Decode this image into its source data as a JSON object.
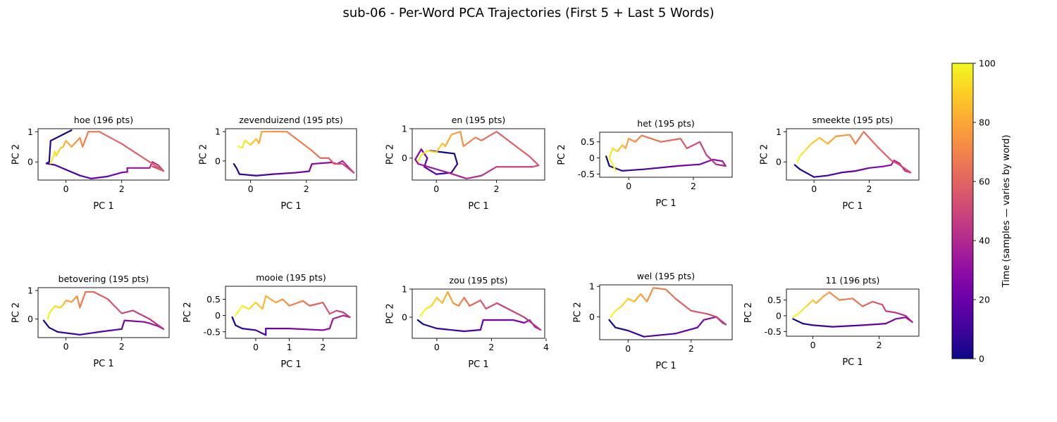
{
  "figure": {
    "title": "sub-06 - Per-Word PCA Trajectories (First 5 + Last 5 Words)"
  },
  "colorbar": {
    "label": "Time (samples — varies by word)",
    "range": [
      0,
      100
    ],
    "ticks": [
      0,
      20,
      40,
      60,
      80,
      100
    ],
    "colormap": "plasma"
  },
  "chart_data": [
    {
      "type": "line",
      "title": "hoe (196 pts)",
      "xlabel": "PC 1",
      "ylabel": "PC 2",
      "xlim": [
        -1.0,
        3.7
      ],
      "ylim": [
        -0.6,
        1.1
      ],
      "xticks": [
        0,
        2
      ],
      "yticks": [
        0,
        1
      ],
      "points": [
        [
          0.2,
          1.05
        ],
        [
          -0.55,
          0.7
        ],
        [
          -0.6,
          0.0
        ],
        [
          -0.7,
          -0.05
        ],
        [
          -0.4,
          -0.1
        ],
        [
          0.5,
          -0.45
        ],
        [
          0.9,
          -0.55
        ],
        [
          1.5,
          -0.48
        ],
        [
          2.0,
          -0.35
        ],
        [
          2.2,
          -0.33
        ],
        [
          2.2,
          -0.2
        ],
        [
          2.9,
          -0.2
        ],
        [
          3.0,
          -0.2
        ],
        [
          3.1,
          0.0
        ],
        [
          3.3,
          -0.1
        ],
        [
          3.5,
          -0.3
        ],
        [
          3.3,
          -0.2
        ],
        [
          3.1,
          -0.15
        ],
        [
          3.5,
          -0.3
        ],
        [
          2.0,
          0.6
        ],
        [
          1.2,
          1.0
        ],
        [
          0.8,
          1.0
        ],
        [
          0.6,
          0.5
        ],
        [
          0.5,
          0.8
        ],
        [
          0.3,
          0.6
        ],
        [
          0.2,
          0.5
        ],
        [
          0.0,
          0.7
        ],
        [
          -0.1,
          0.5
        ],
        [
          -0.2,
          0.45
        ],
        [
          -0.35,
          0.2
        ],
        [
          -0.4,
          0.35
        ],
        [
          -0.5,
          0.05
        ],
        [
          -0.55,
          -0.05
        ]
      ]
    },
    {
      "type": "line",
      "title": "zevenduizend (195 pts)",
      "xlabel": "PC 1",
      "ylabel": "PC 2",
      "xlim": [
        -0.9,
        3.8
      ],
      "ylim": [
        -0.65,
        1.1
      ],
      "xticks": [
        0,
        2
      ],
      "yticks": [
        0,
        1
      ],
      "points": [
        [
          -0.6,
          -0.1
        ],
        [
          -0.5,
          -0.25
        ],
        [
          -0.4,
          -0.45
        ],
        [
          0.2,
          -0.5
        ],
        [
          0.8,
          -0.45
        ],
        [
          1.6,
          -0.4
        ],
        [
          2.1,
          -0.35
        ],
        [
          2.2,
          -0.1
        ],
        [
          2.9,
          -0.05
        ],
        [
          3.1,
          -0.1
        ],
        [
          3.3,
          0.0
        ],
        [
          3.5,
          -0.2
        ],
        [
          3.7,
          -0.4
        ],
        [
          3.3,
          -0.1
        ],
        [
          3.0,
          -0.1
        ],
        [
          2.8,
          0.1
        ],
        [
          2.5,
          0.1
        ],
        [
          2.2,
          0.35
        ],
        [
          1.3,
          1.0
        ],
        [
          0.8,
          1.0
        ],
        [
          0.4,
          1.0
        ],
        [
          0.3,
          0.6
        ],
        [
          0.2,
          0.75
        ],
        [
          0.0,
          0.55
        ],
        [
          -0.2,
          0.7
        ],
        [
          -0.3,
          0.45
        ],
        [
          -0.45,
          0.5
        ]
      ]
    },
    {
      "type": "line",
      "title": "en (195 pts)",
      "xlabel": "PC 1",
      "ylabel": "PC 2",
      "xlim": [
        -0.8,
        3.6
      ],
      "ylim": [
        -0.75,
        1.0
      ],
      "xticks": [
        0,
        2
      ],
      "yticks": [
        0,
        1
      ],
      "points": [
        [
          -0.2,
          0.25
        ],
        [
          0.6,
          0.15
        ],
        [
          0.7,
          -0.2
        ],
        [
          0.5,
          -0.5
        ],
        [
          0.0,
          -0.55
        ],
        [
          -0.4,
          -0.3
        ],
        [
          -0.3,
          0.0
        ],
        [
          -0.5,
          0.3
        ],
        [
          -0.7,
          -0.05
        ],
        [
          -0.6,
          -0.2
        ],
        [
          0.4,
          -0.5
        ],
        [
          1.0,
          -0.7
        ],
        [
          1.5,
          -0.6
        ],
        [
          2.0,
          -0.3
        ],
        [
          3.2,
          -0.3
        ],
        [
          3.4,
          -0.25
        ],
        [
          3.1,
          0.05
        ],
        [
          2.0,
          0.9
        ],
        [
          1.5,
          0.6
        ],
        [
          1.3,
          0.7
        ],
        [
          0.9,
          0.4
        ],
        [
          0.8,
          0.9
        ],
        [
          0.5,
          0.8
        ],
        [
          0.3,
          0.4
        ],
        [
          0.2,
          0.5
        ],
        [
          0.0,
          0.2
        ],
        [
          -0.3,
          0.25
        ],
        [
          -0.5,
          0.1
        ],
        [
          -0.6,
          -0.1
        ]
      ]
    },
    {
      "type": "line",
      "title": "het (195 pts)",
      "xlabel": "PC 1",
      "ylabel": "PC 2",
      "xlim": [
        -0.9,
        3.2
      ],
      "ylim": [
        -0.6,
        0.8
      ],
      "xticks": [
        0,
        2
      ],
      "yticks": [
        -0.5,
        0.0,
        0.5
      ],
      "points": [
        [
          -0.7,
          0.05
        ],
        [
          -0.6,
          -0.25
        ],
        [
          -0.2,
          -0.4
        ],
        [
          0.5,
          -0.35
        ],
        [
          1.0,
          -0.3
        ],
        [
          1.5,
          -0.25
        ],
        [
          2.2,
          -0.2
        ],
        [
          2.6,
          -0.05
        ],
        [
          2.9,
          -0.1
        ],
        [
          3.0,
          -0.25
        ],
        [
          2.7,
          -0.2
        ],
        [
          2.4,
          0.1
        ],
        [
          2.2,
          0.5
        ],
        [
          1.8,
          0.3
        ],
        [
          1.6,
          0.6
        ],
        [
          1.0,
          0.5
        ],
        [
          0.4,
          0.7
        ],
        [
          0.2,
          0.5
        ],
        [
          0.0,
          0.6
        ],
        [
          -0.1,
          0.3
        ],
        [
          -0.2,
          0.4
        ],
        [
          -0.35,
          0.2
        ],
        [
          -0.5,
          0.3
        ],
        [
          -0.6,
          0.0
        ],
        [
          -0.4,
          -0.4
        ]
      ]
    },
    {
      "type": "line",
      "title": "smeekte (195 pts)",
      "xlabel": "PC 1",
      "ylabel": "PC 2",
      "xlim": [
        -1.0,
        3.8
      ],
      "ylim": [
        -0.6,
        1.1
      ],
      "xticks": [
        0,
        2
      ],
      "yticks": [
        0,
        1
      ],
      "points": [
        [
          -0.7,
          -0.1
        ],
        [
          -0.5,
          -0.25
        ],
        [
          0.0,
          -0.5
        ],
        [
          0.5,
          -0.45
        ],
        [
          1.0,
          -0.35
        ],
        [
          1.5,
          -0.3
        ],
        [
          2.0,
          -0.2
        ],
        [
          2.5,
          -0.15
        ],
        [
          2.8,
          -0.1
        ],
        [
          2.9,
          0.05
        ],
        [
          3.1,
          -0.05
        ],
        [
          3.3,
          -0.3
        ],
        [
          3.5,
          -0.35
        ],
        [
          3.1,
          -0.1
        ],
        [
          2.8,
          0.05
        ],
        [
          2.3,
          0.5
        ],
        [
          1.8,
          1.0
        ],
        [
          1.5,
          0.6
        ],
        [
          1.3,
          0.9
        ],
        [
          0.8,
          0.85
        ],
        [
          0.5,
          0.6
        ],
        [
          0.2,
          0.8
        ],
        [
          -0.1,
          0.6
        ],
        [
          -0.3,
          0.4
        ],
        [
          -0.5,
          0.2
        ],
        [
          -0.6,
          0.0
        ]
      ]
    },
    {
      "type": "line",
      "title": "betovering (195 pts)",
      "xlabel": "PC 1",
      "ylabel": "PC 2",
      "xlim": [
        -1.0,
        3.7
      ],
      "ylim": [
        -0.65,
        1.1
      ],
      "xticks": [
        0,
        2
      ],
      "yticks": [
        0,
        1
      ],
      "points": [
        [
          -0.8,
          -0.05
        ],
        [
          -0.6,
          -0.3
        ],
        [
          -0.3,
          -0.45
        ],
        [
          0.5,
          -0.55
        ],
        [
          1.2,
          -0.45
        ],
        [
          2.0,
          -0.35
        ],
        [
          2.1,
          -0.05
        ],
        [
          2.8,
          -0.1
        ],
        [
          3.0,
          -0.15
        ],
        [
          3.3,
          -0.25
        ],
        [
          3.5,
          -0.35
        ],
        [
          3.0,
          0.0
        ],
        [
          2.4,
          0.3
        ],
        [
          2.0,
          0.2
        ],
        [
          1.5,
          0.7
        ],
        [
          1.0,
          0.95
        ],
        [
          0.7,
          0.95
        ],
        [
          0.5,
          0.4
        ],
        [
          0.4,
          0.8
        ],
        [
          0.2,
          0.6
        ],
        [
          0.0,
          0.65
        ],
        [
          -0.1,
          0.5
        ],
        [
          -0.2,
          0.4
        ],
        [
          -0.4,
          0.45
        ],
        [
          -0.6,
          0.2
        ],
        [
          -0.65,
          0.0
        ]
      ]
    },
    {
      "type": "line",
      "title": "mooie (195 pts)",
      "xlabel": "PC 1",
      "ylabel": "PC 2",
      "xlim": [
        -0.9,
        3.0
      ],
      "ylim": [
        -0.7,
        0.9
      ],
      "xticks": [
        0,
        1,
        2
      ],
      "yticks": [
        -0.5,
        0.0,
        0.5
      ],
      "points": [
        [
          -0.7,
          -0.05
        ],
        [
          -0.6,
          -0.3
        ],
        [
          -0.4,
          -0.4
        ],
        [
          0.0,
          -0.45
        ],
        [
          0.3,
          -0.6
        ],
        [
          0.3,
          -0.4
        ],
        [
          1.0,
          -0.4
        ],
        [
          2.0,
          -0.45
        ],
        [
          2.2,
          -0.4
        ],
        [
          2.3,
          -0.1
        ],
        [
          2.6,
          0.0
        ],
        [
          2.8,
          -0.05
        ],
        [
          2.6,
          0.1
        ],
        [
          2.4,
          0.15
        ],
        [
          2.2,
          0.05
        ],
        [
          2.0,
          0.4
        ],
        [
          1.6,
          0.3
        ],
        [
          1.4,
          0.45
        ],
        [
          1.0,
          0.3
        ],
        [
          0.8,
          0.5
        ],
        [
          0.6,
          0.4
        ],
        [
          0.3,
          0.6
        ],
        [
          0.2,
          0.2
        ],
        [
          0.0,
          0.4
        ],
        [
          -0.2,
          0.2
        ],
        [
          -0.4,
          0.3
        ],
        [
          -0.6,
          0.0
        ]
      ]
    },
    {
      "type": "line",
      "title": "zou (195 pts)",
      "xlabel": "PC 1",
      "ylabel": "PC 2",
      "xlim": [
        -0.9,
        3.95
      ],
      "ylim": [
        -0.75,
        1.0
      ],
      "xticks": [
        0,
        2,
        4
      ],
      "yticks": [
        0,
        1
      ],
      "points": [
        [
          -0.7,
          -0.1
        ],
        [
          -0.5,
          -0.25
        ],
        [
          0.0,
          -0.4
        ],
        [
          1.0,
          -0.5
        ],
        [
          1.6,
          -0.45
        ],
        [
          1.7,
          -0.1
        ],
        [
          2.8,
          -0.1
        ],
        [
          3.2,
          -0.2
        ],
        [
          3.4,
          -0.1
        ],
        [
          3.6,
          -0.35
        ],
        [
          3.8,
          -0.45
        ],
        [
          3.2,
          0.0
        ],
        [
          2.2,
          0.5
        ],
        [
          1.8,
          0.3
        ],
        [
          1.6,
          0.6
        ],
        [
          1.2,
          0.4
        ],
        [
          1.0,
          0.7
        ],
        [
          0.8,
          0.4
        ],
        [
          0.6,
          0.5
        ],
        [
          0.4,
          0.9
        ],
        [
          0.2,
          0.5
        ],
        [
          0.0,
          0.7
        ],
        [
          -0.2,
          0.4
        ],
        [
          -0.4,
          0.3
        ],
        [
          -0.6,
          0.05
        ]
      ]
    },
    {
      "type": "line",
      "title": "wel (195 pts)",
      "xlabel": "PC 1",
      "ylabel": "PC 2",
      "xlim": [
        -0.9,
        3.3
      ],
      "ylim": [
        -0.75,
        1.05
      ],
      "xticks": [
        0,
        2
      ],
      "yticks": [
        0,
        1
      ],
      "points": [
        [
          -0.6,
          -0.1
        ],
        [
          -0.4,
          -0.35
        ],
        [
          0.0,
          -0.45
        ],
        [
          0.5,
          -0.65
        ],
        [
          1.5,
          -0.55
        ],
        [
          2.2,
          -0.35
        ],
        [
          2.4,
          -0.1
        ],
        [
          2.6,
          -0.05
        ],
        [
          2.8,
          0.0
        ],
        [
          3.0,
          -0.2
        ],
        [
          3.1,
          -0.25
        ],
        [
          2.8,
          0.0
        ],
        [
          2.5,
          0.1
        ],
        [
          2.0,
          0.2
        ],
        [
          1.5,
          0.6
        ],
        [
          1.2,
          0.9
        ],
        [
          0.8,
          0.95
        ],
        [
          0.6,
          0.5
        ],
        [
          0.4,
          0.75
        ],
        [
          0.2,
          0.5
        ],
        [
          0.0,
          0.6
        ],
        [
          -0.2,
          0.35
        ],
        [
          -0.4,
          0.2
        ],
        [
          -0.55,
          0.0
        ]
      ]
    },
    {
      "type": "line",
      "title": "11 (196 pts)",
      "xlabel": "PC 1",
      "ylabel": "PC 2",
      "xlim": [
        -0.8,
        3.2
      ],
      "ylim": [
        -0.65,
        0.85
      ],
      "xticks": [
        0,
        2
      ],
      "yticks": [
        -0.5,
        0.0,
        0.5
      ],
      "points": [
        [
          -0.6,
          -0.1
        ],
        [
          -0.3,
          -0.25
        ],
        [
          0.0,
          -0.3
        ],
        [
          0.6,
          -0.35
        ],
        [
          1.5,
          -0.3
        ],
        [
          2.2,
          -0.25
        ],
        [
          2.5,
          -0.1
        ],
        [
          2.8,
          -0.05
        ],
        [
          3.0,
          -0.2
        ],
        [
          2.8,
          0.0
        ],
        [
          2.5,
          0.1
        ],
        [
          2.2,
          0.15
        ],
        [
          2.1,
          0.35
        ],
        [
          1.8,
          0.45
        ],
        [
          1.5,
          0.3
        ],
        [
          1.2,
          0.55
        ],
        [
          0.8,
          0.5
        ],
        [
          0.5,
          0.75
        ],
        [
          0.3,
          0.6
        ],
        [
          0.1,
          0.4
        ],
        [
          0.0,
          0.5
        ],
        [
          -0.2,
          0.3
        ],
        [
          -0.4,
          0.1
        ],
        [
          -0.6,
          -0.05
        ]
      ]
    }
  ]
}
